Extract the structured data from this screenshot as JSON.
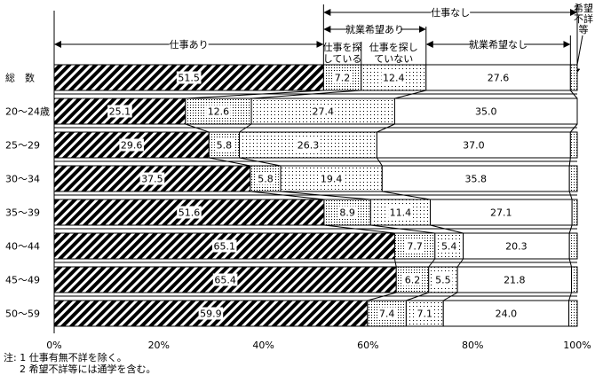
{
  "chart_data": {
    "type": "bar",
    "orientation": "horizontal",
    "stacked": true,
    "categories": [
      "総　数",
      "20～24歳",
      "25～29",
      "30～34",
      "35～39",
      "40～44",
      "45～49",
      "50～59"
    ],
    "series": [
      {
        "name": "仕事あり",
        "pattern": "diagonal-hatch",
        "values": [
          51.5,
          25.1,
          29.6,
          37.5,
          51.6,
          65.1,
          65.4,
          59.9
        ]
      },
      {
        "name": "仕事を探している",
        "pattern": "dense-dots",
        "values": [
          7.2,
          12.6,
          5.8,
          5.8,
          8.9,
          7.7,
          6.2,
          7.4
        ]
      },
      {
        "name": "仕事を探していない",
        "pattern": "sparse-dots",
        "values": [
          12.4,
          27.4,
          26.3,
          19.4,
          11.4,
          5.4,
          5.5,
          7.1
        ]
      },
      {
        "name": "就業希望なし",
        "pattern": "white",
        "values": [
          27.6,
          35.0,
          37.0,
          35.8,
          27.1,
          20.3,
          21.8,
          24.0
        ]
      },
      {
        "name": "希望不詳等",
        "pattern": "dense-dots",
        "values": null
      }
    ],
    "value_labels": [
      [
        "51.5",
        "7.2",
        "12.4",
        "27.6"
      ],
      [
        "25.1",
        "12.6",
        "27.4",
        "35.0"
      ],
      [
        "29.6",
        "5.8",
        "26.3",
        "37.0"
      ],
      [
        "37.5",
        "5.8",
        "19.4",
        "35.8"
      ],
      [
        "51.6",
        "8.9",
        "11.4",
        "27.1"
      ],
      [
        "65.1",
        "7.7",
        "5.4",
        "20.3"
      ],
      [
        "65.4",
        "6.2",
        "5.5",
        "21.8"
      ],
      [
        "59.9",
        "7.4",
        "7.1",
        "24.0"
      ]
    ],
    "xlim": [
      0,
      100
    ],
    "xticks": [
      "0%",
      "20%",
      "40%",
      "60%",
      "80%",
      "100%"
    ],
    "grid": false,
    "header": {
      "shigoto_nashi": "仕事なし",
      "shugyo_kibo_ari": "就業希望あり",
      "shigoto_ari": "仕事あり",
      "shugyo_kibo_nashi": "就業希望なし",
      "sagashite_iru": [
        "仕事を探",
        "している"
      ],
      "sagashite_inai": [
        "仕事を探し",
        "ていない"
      ],
      "kibo_fusho": [
        "希望",
        "不詳",
        "等"
      ]
    },
    "notes": [
      "注: 1 仕事有無不詳を除く。",
      "2 希望不詳等には通学を含む。"
    ]
  }
}
